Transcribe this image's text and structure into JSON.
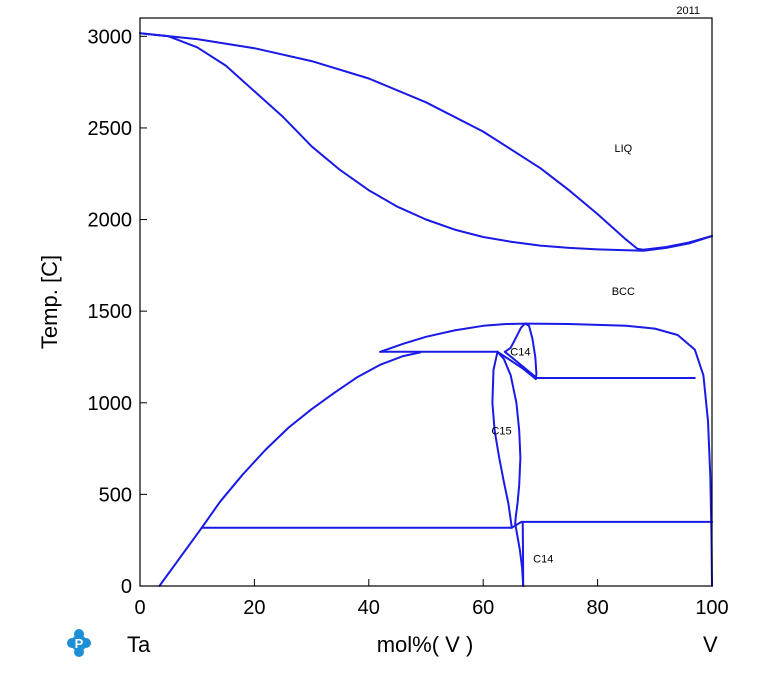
{
  "chart_data": {
    "type": "line",
    "title": "",
    "year": "2011",
    "xlabel": "mol%(  V  )",
    "ylabel": "Temp.  [C]",
    "left_element": "Ta",
    "right_element": "V",
    "xlim": [
      0,
      100
    ],
    "ylim": [
      0,
      3100
    ],
    "xticks": [
      "0",
      "20",
      "40",
      "60",
      "80",
      "100"
    ],
    "yticks": [
      "0",
      "500",
      "1000",
      "1500",
      "2000",
      "2500",
      "3000"
    ],
    "grid": false,
    "series_color": "#1a1ae6",
    "phase_labels": [
      {
        "text": "LIQ",
        "x": 84.5,
        "y": 2390
      },
      {
        "text": "BCC",
        "x": 84.5,
        "y": 1610
      },
      {
        "text": "C14",
        "x": 66.5,
        "y": 1280
      },
      {
        "text": "C15",
        "x": 63.2,
        "y": 850
      },
      {
        "text": "C14",
        "x": 70.5,
        "y": 150
      }
    ],
    "series": [
      {
        "values": [
          [
            0,
            3017
          ],
          [
            10,
            2985
          ],
          [
            20,
            2935
          ],
          [
            30,
            2865
          ],
          [
            40,
            2770
          ],
          [
            50,
            2640
          ],
          [
            60,
            2480
          ],
          [
            70,
            2280
          ],
          [
            75,
            2160
          ],
          [
            80,
            2030
          ],
          [
            85,
            1890
          ],
          [
            87,
            1840
          ],
          [
            88,
            1835
          ],
          [
            92,
            1850
          ],
          [
            96,
            1875
          ],
          [
            100,
            1910
          ]
        ]
      },
      {
        "values": [
          [
            0,
            3017
          ],
          [
            5,
            3000
          ],
          [
            10,
            2940
          ],
          [
            15,
            2840
          ],
          [
            20,
            2700
          ],
          [
            25,
            2560
          ],
          [
            30,
            2400
          ],
          [
            35,
            2270
          ],
          [
            40,
            2160
          ],
          [
            45,
            2070
          ],
          [
            50,
            2000
          ],
          [
            55,
            1945
          ],
          [
            60,
            1905
          ],
          [
            65,
            1878
          ],
          [
            70,
            1858
          ],
          [
            75,
            1845
          ],
          [
            80,
            1837
          ],
          [
            85,
            1832
          ],
          [
            88,
            1830
          ],
          [
            92,
            1845
          ],
          [
            96,
            1870
          ],
          [
            100,
            1910
          ]
        ]
      },
      {
        "values": [
          [
            42,
            1278
          ],
          [
            46,
            1322
          ],
          [
            50,
            1360
          ],
          [
            55,
            1395
          ],
          [
            60,
            1420
          ],
          [
            64,
            1430
          ],
          [
            67.5,
            1432
          ]
        ]
      },
      {
        "values": [
          [
            67.5,
            1432
          ],
          [
            75,
            1430
          ],
          [
            85,
            1420
          ],
          [
            90,
            1405
          ],
          [
            94,
            1370
          ],
          [
            97,
            1290
          ],
          [
            98.5,
            1150
          ],
          [
            99.3,
            900
          ],
          [
            99.7,
            600
          ],
          [
            99.9,
            300
          ],
          [
            100,
            0
          ]
        ]
      },
      {
        "values": [
          [
            10.8,
            318
          ],
          [
            14,
            460
          ],
          [
            18,
            610
          ],
          [
            22,
            745
          ],
          [
            26,
            865
          ],
          [
            30,
            965
          ],
          [
            34,
            1055
          ],
          [
            38,
            1140
          ],
          [
            42,
            1208
          ],
          [
            46,
            1255
          ],
          [
            49,
            1275
          ]
        ]
      },
      {
        "values": [
          [
            3.4,
            0
          ],
          [
            10.8,
            318
          ]
        ]
      },
      {
        "values": [
          [
            42,
            1278
          ],
          [
            62.5,
            1278
          ]
        ]
      },
      {
        "values": [
          [
            62.5,
            1278
          ],
          [
            66.8,
            1190
          ],
          [
            69.2,
            1130
          ]
        ]
      },
      {
        "values": [
          [
            63.8,
            1278
          ],
          [
            69.2,
            1140
          ]
        ]
      },
      {
        "values": [
          [
            69.2,
            1135
          ],
          [
            97,
            1135
          ]
        ]
      },
      {
        "values": [
          [
            62.5,
            1278
          ],
          [
            61.8,
            1180
          ],
          [
            61.6,
            1000
          ],
          [
            62,
            850
          ],
          [
            62.8,
            700
          ],
          [
            63.6,
            570
          ],
          [
            64.4,
            450
          ],
          [
            65,
            318
          ]
        ]
      },
      {
        "values": [
          [
            63.8,
            1278
          ],
          [
            64.8,
            1300
          ],
          [
            65.8,
            1360
          ],
          [
            66.6,
            1410
          ],
          [
            67.3,
            1432
          ],
          [
            68,
            1420
          ],
          [
            68.6,
            1350
          ],
          [
            69.1,
            1250
          ],
          [
            69.3,
            1160
          ],
          [
            69.2,
            1130
          ]
        ]
      },
      {
        "values": [
          [
            62.5,
            1278
          ],
          [
            63.6,
            1240
          ],
          [
            64.8,
            1150
          ],
          [
            65.8,
            1000
          ],
          [
            66.3,
            850
          ],
          [
            66.5,
            700
          ],
          [
            66.3,
            550
          ],
          [
            66,
            450
          ],
          [
            65.7,
            380
          ],
          [
            65.6,
            340
          ]
        ]
      },
      {
        "values": [
          [
            10.8,
            318
          ],
          [
            65,
            318
          ]
        ]
      },
      {
        "values": [
          [
            65,
            318
          ],
          [
            66.7,
            350
          ],
          [
            100,
            350
          ]
        ]
      },
      {
        "values": [
          [
            65.6,
            340
          ],
          [
            66.4,
            200
          ],
          [
            66.8,
            100
          ],
          [
            67,
            0
          ]
        ]
      },
      {
        "values": [
          [
            66.9,
            350
          ],
          [
            66.95,
            200
          ],
          [
            67,
            0
          ]
        ]
      }
    ]
  }
}
